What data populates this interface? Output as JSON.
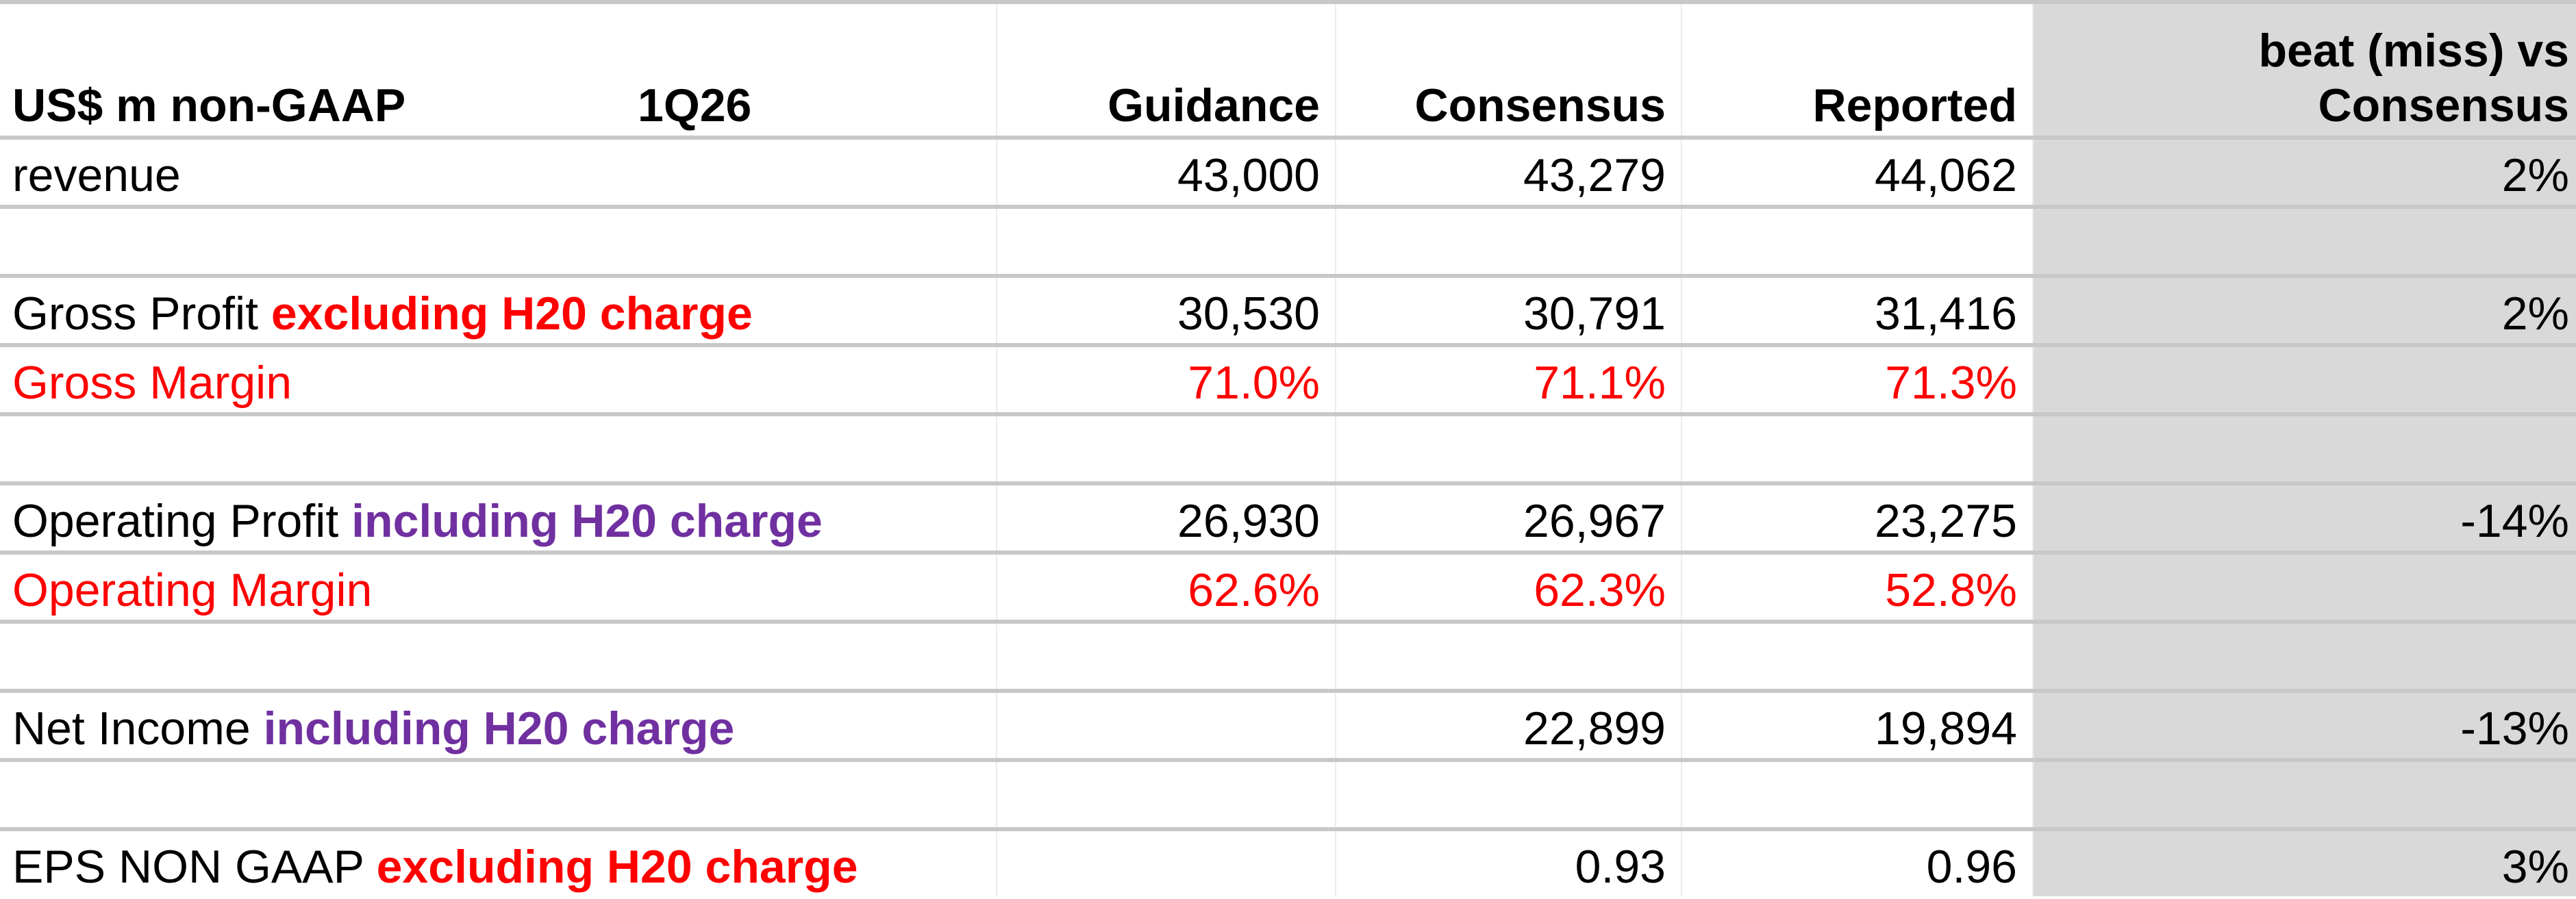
{
  "table": {
    "header": {
      "label": "US$ m non-GAAP",
      "period": "1Q26",
      "guidance": "Guidance",
      "consensus": "Consensus",
      "reported": "Reported",
      "beat": "beat (miss) vs Consensus"
    },
    "rows": [
      {
        "label": "revenue",
        "guidance": "43,000",
        "consensus": "43,279",
        "reported": "44,062",
        "beat": "2%"
      },
      {
        "label": "Gross Profit",
        "qualifier": "excluding H20 charge",
        "guidance": "30,530",
        "consensus": "30,791",
        "reported": "31,416",
        "beat": "2%"
      },
      {
        "label": "Gross Margin",
        "guidance": "71.0%",
        "consensus": "71.1%",
        "reported": "71.3%"
      },
      {
        "label": "Operating Profit",
        "qualifier": "including H20 charge",
        "guidance": "26,930",
        "consensus": "26,967",
        "reported": "23,275",
        "beat": "-14%"
      },
      {
        "label": "Operating Margin",
        "guidance": "62.6%",
        "consensus": "62.3%",
        "reported": "52.8%"
      },
      {
        "label": "Net Income",
        "qualifier": "including H20 charge",
        "consensus": "22,899",
        "reported": "19,894",
        "beat": "-13%"
      },
      {
        "label": "EPS NON GAAP",
        "qualifier": "excluding H20 charge",
        "consensus": "0.93",
        "reported": "0.96",
        "beat": "3%"
      }
    ]
  }
}
